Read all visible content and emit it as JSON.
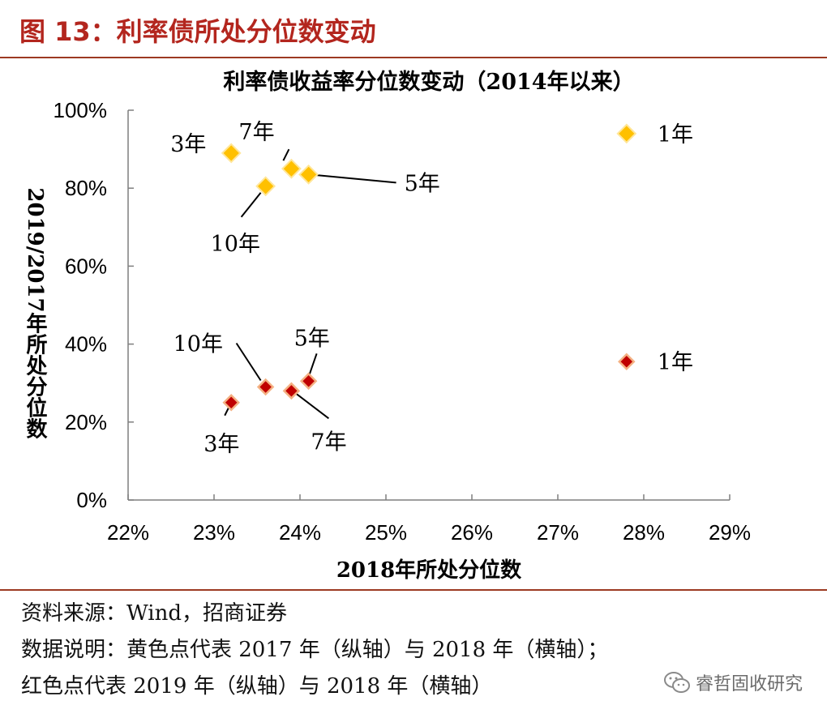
{
  "header": {
    "figure_title": "图 13：利率债所处分位数变动"
  },
  "chart_data": {
    "type": "scatter",
    "title": "利率债收益率分位数变动（2014年以来）",
    "xlabel": "2018年所处分位数",
    "ylabel": "2019/2017年所处分位数",
    "xlim": [
      0.22,
      0.29
    ],
    "ylim": [
      0,
      1.0
    ],
    "x_ticks": [
      "22%",
      "23%",
      "24%",
      "25%",
      "26%",
      "27%",
      "28%",
      "29%"
    ],
    "y_ticks": [
      "0%",
      "20%",
      "40%",
      "60%",
      "80%",
      "100%"
    ],
    "grid": false,
    "legend": "none",
    "series": [
      {
        "color": "#ffc000",
        "points": [
          {
            "x": 0.232,
            "y": 0.89,
            "label": "3年"
          },
          {
            "x": 0.239,
            "y": 0.85,
            "label": "7年"
          },
          {
            "x": 0.241,
            "y": 0.835,
            "label": "5年"
          },
          {
            "x": 0.236,
            "y": 0.805,
            "label": "10年"
          },
          {
            "x": 0.278,
            "y": 0.94,
            "label": "1年"
          }
        ]
      },
      {
        "color": "#c00000",
        "points": [
          {
            "x": 0.232,
            "y": 0.25,
            "label": "3年"
          },
          {
            "x": 0.236,
            "y": 0.29,
            "label": "10年"
          },
          {
            "x": 0.239,
            "y": 0.28,
            "label": "7年"
          },
          {
            "x": 0.241,
            "y": 0.305,
            "label": "5年"
          },
          {
            "x": 0.278,
            "y": 0.355,
            "label": "1年"
          }
        ]
      }
    ]
  },
  "footer": {
    "source": "资料来源：Wind，招商证券",
    "note_line1": "数据说明：黄色点代表 2017 年（纵轴）与 2018 年（横轴）；",
    "note_line2": "红色点代表 2019 年（纵轴）与 2018 年（横轴）",
    "watermark": "睿哲固收研究"
  }
}
